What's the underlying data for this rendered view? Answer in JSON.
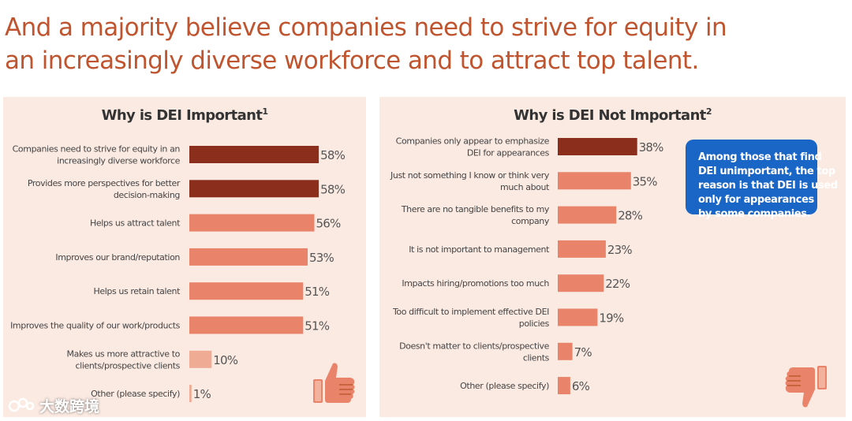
{
  "headline": {
    "line1": "And a majority believe companies need to strive for equity in",
    "line2": "an increasingly diverse workforce and to attract top talent."
  },
  "colors": {
    "dark_bar": "#8b2f1c",
    "light_bar": "#e9846a",
    "lightest_bar": "#f0ab95",
    "panel": "#fbeae2",
    "callout": "#1a66c6",
    "headline": "#c0542f"
  },
  "chart_data": [
    {
      "type": "bar",
      "orientation": "horizontal",
      "title": "Why is DEI Important",
      "title_footnote": "1",
      "categories": [
        [
          "Companies need to strive for equity in an",
          "increasingly diverse workforce"
        ],
        [
          "Provides more perspectives for better",
          "decision-making"
        ],
        [
          "Helps us attract talent"
        ],
        [
          "Improves our brand/reputation"
        ],
        [
          "Helps us retain talent"
        ],
        [
          "Improves the quality of our work/products"
        ],
        [
          "Makes us more attractive to",
          "clients/prospective clients"
        ],
        [
          "Other (please specify)"
        ]
      ],
      "values": [
        58,
        58,
        56,
        53,
        51,
        51,
        10,
        1
      ],
      "value_labels": [
        "58%",
        "58%",
        "56%",
        "53%",
        "51%",
        "51%",
        "10%",
        "1%"
      ],
      "bar_tones": [
        "dark",
        "dark",
        "light",
        "light",
        "light",
        "light",
        "lightest",
        "lightest"
      ],
      "xlim": [
        0,
        100
      ]
    },
    {
      "type": "bar",
      "orientation": "horizontal",
      "title": "Why is DEI Not Important",
      "title_footnote": "2",
      "categories": [
        [
          "Companies only appear to emphasize",
          "DEI for appearances"
        ],
        [
          "Just not something I know or think very",
          "much about"
        ],
        [
          "There are no tangible benefits to my",
          "company"
        ],
        [
          "It is not important to management"
        ],
        [
          "Impacts hiring/promotions too much"
        ],
        [
          "Too difficult to implement effective DEI",
          "policies"
        ],
        [
          "Doesn't matter to clients/prospective",
          "clients"
        ],
        [
          "Other (please specify)"
        ]
      ],
      "values": [
        38,
        35,
        28,
        23,
        22,
        19,
        7,
        6
      ],
      "value_labels": [
        "38%",
        "35%",
        "28%",
        "23%",
        "22%",
        "19%",
        "7%",
        "6%"
      ],
      "bar_tones": [
        "dark",
        "light",
        "light",
        "light",
        "light",
        "light",
        "light",
        "light"
      ],
      "xlim": [
        0,
        100
      ]
    }
  ],
  "callout": {
    "lines": [
      "Among those that find",
      "DEI unimportant, the top",
      "reason is that DEI is used",
      "only for appearances",
      "by some companies."
    ]
  },
  "watermark": {
    "text": "大数跨境"
  }
}
